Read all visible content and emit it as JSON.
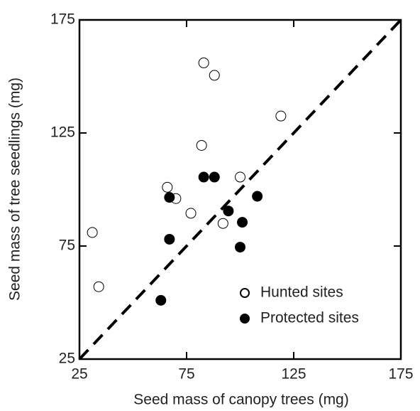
{
  "chart_data": {
    "type": "scatter",
    "xlabel": "Seed mass of canopy trees (mg)",
    "ylabel": "Seed mass of tree seedlings (mg)",
    "xlim": [
      25,
      175
    ],
    "ylim": [
      25,
      175
    ],
    "xticks": [
      25,
      75,
      125,
      175
    ],
    "yticks": [
      25,
      75,
      125,
      175
    ],
    "legend": "lower right",
    "series": [
      {
        "name": "Hunted sites",
        "color": "#ffffff",
        "x": [
          31,
          34,
          66,
          70,
          77,
          82,
          83,
          88,
          92,
          100,
          119
        ],
        "values": [
          81,
          57,
          101,
          96,
          89.5,
          119.5,
          156,
          150.5,
          85,
          105.5,
          132.5
        ]
      },
      {
        "name": "Protected sites",
        "color": "#000000",
        "x": [
          63,
          67,
          67,
          83,
          88,
          94.5,
          101,
          100,
          108
        ],
        "values": [
          51,
          96.5,
          78,
          105.5,
          105.5,
          90.5,
          85.5,
          74.5,
          97
        ]
      }
    ]
  }
}
